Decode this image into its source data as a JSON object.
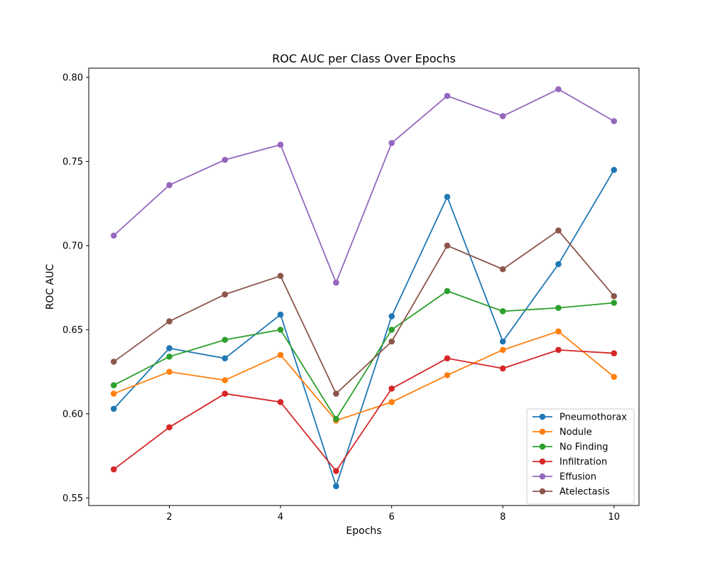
{
  "chart_data": {
    "type": "line",
    "title": "ROC AUC per Class Over Epochs",
    "xlabel": "Epochs",
    "ylabel": "ROC AUC",
    "x": [
      1,
      2,
      3,
      4,
      5,
      6,
      7,
      8,
      9,
      10
    ],
    "xticks": [
      2,
      4,
      6,
      8,
      10
    ],
    "yticks": [
      0.55,
      0.6,
      0.65,
      0.7,
      0.75,
      0.8
    ],
    "xlim": [
      0.55,
      10.45
    ],
    "ylim": [
      0.5455,
      0.8055
    ],
    "grid": false,
    "legend_position": "bottom-right",
    "marker": "circle",
    "series": [
      {
        "name": "Pneumothorax",
        "color": "#1f77b4",
        "values": [
          0.603,
          0.639,
          0.633,
          0.659,
          0.557,
          0.658,
          0.729,
          0.643,
          0.689,
          0.745
        ]
      },
      {
        "name": "Nodule",
        "color": "#ff7f0e",
        "values": [
          0.612,
          0.625,
          0.62,
          0.635,
          0.596,
          0.607,
          0.623,
          0.638,
          0.649,
          0.622
        ]
      },
      {
        "name": "No Finding",
        "color": "#2ca02c",
        "values": [
          0.617,
          0.634,
          0.644,
          0.65,
          0.597,
          0.65,
          0.673,
          0.661,
          0.663,
          0.666
        ]
      },
      {
        "name": "Infiltration",
        "color": "#d62728",
        "values": [
          0.567,
          0.592,
          0.612,
          0.607,
          0.566,
          0.615,
          0.633,
          0.627,
          0.638,
          0.636
        ]
      },
      {
        "name": "Effusion",
        "color": "#9467bd",
        "values": [
          0.706,
          0.736,
          0.751,
          0.76,
          0.678,
          0.761,
          0.789,
          0.777,
          0.793,
          0.774
        ]
      },
      {
        "name": "Atelectasis",
        "color": "#8c564b",
        "values": [
          0.631,
          0.655,
          0.671,
          0.682,
          0.612,
          0.643,
          0.7,
          0.686,
          0.709,
          0.67
        ]
      }
    ]
  }
}
